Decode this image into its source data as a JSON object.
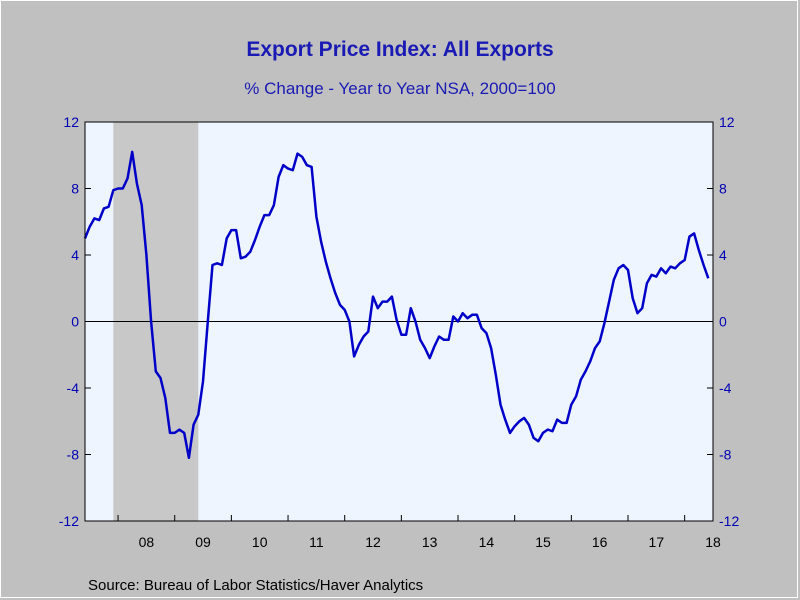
{
  "title": "Export Price Index: All Exports",
  "subtitle": "% Change - Year to Year     NSA, 2000=100",
  "source": "Source:  Bureau of Labor Statistics/Haver Analytics",
  "colors": {
    "line": "#0000c8",
    "plot_background": "#eef5ff",
    "recession_shade": "#c8c8c8",
    "outer_background": "#c0c0c0",
    "text_blue": "#1a1ab4"
  },
  "chart_data": {
    "type": "line",
    "title": "Export Price Index: All Exports",
    "subtitle": "% Change - Year to Year     NSA, 2000=100",
    "xlabel": "",
    "ylabel": "",
    "ylim": [
      -12,
      12
    ],
    "yticks": [
      -12,
      -8,
      -4,
      0,
      4,
      8,
      12
    ],
    "xlim": [
      "2007-06",
      "2018-07"
    ],
    "x_tick_labels": [
      "08",
      "09",
      "10",
      "11",
      "12",
      "13",
      "14",
      "15",
      "16",
      "17",
      "18"
    ],
    "recession_shading": [
      {
        "start": "2007-12",
        "end": "2009-06"
      }
    ],
    "zero_line": true,
    "grid": false,
    "series": [
      {
        "values": [
          {
            "x": "2007-06",
            "y": 5.0
          },
          {
            "x": "2007-07",
            "y": 5.7
          },
          {
            "x": "2007-08",
            "y": 6.2
          },
          {
            "x": "2007-09",
            "y": 6.1
          },
          {
            "x": "2007-10",
            "y": 6.8
          },
          {
            "x": "2007-11",
            "y": 6.9
          },
          {
            "x": "2007-12",
            "y": 7.9
          },
          {
            "x": "2008-01",
            "y": 8.0
          },
          {
            "x": "2008-02",
            "y": 8.0
          },
          {
            "x": "2008-03",
            "y": 8.6
          },
          {
            "x": "2008-04",
            "y": 10.2
          },
          {
            "x": "2008-05",
            "y": 8.3
          },
          {
            "x": "2008-06",
            "y": 7.0
          },
          {
            "x": "2008-07",
            "y": 4.0
          },
          {
            "x": "2008-08",
            "y": 0.0
          },
          {
            "x": "2008-09",
            "y": -3.0
          },
          {
            "x": "2008-10",
            "y": -3.4
          },
          {
            "x": "2008-11",
            "y": -4.6
          },
          {
            "x": "2008-12",
            "y": -6.7
          },
          {
            "x": "2009-01",
            "y": -6.7
          },
          {
            "x": "2009-02",
            "y": -6.5
          },
          {
            "x": "2009-03",
            "y": -6.7
          },
          {
            "x": "2009-04",
            "y": -8.2
          },
          {
            "x": "2009-05",
            "y": -6.2
          },
          {
            "x": "2009-06",
            "y": -5.6
          },
          {
            "x": "2009-07",
            "y": -3.6
          },
          {
            "x": "2009-08",
            "y": 0.0
          },
          {
            "x": "2009-09",
            "y": 3.4
          },
          {
            "x": "2009-10",
            "y": 3.5
          },
          {
            "x": "2009-11",
            "y": 3.4
          },
          {
            "x": "2009-12",
            "y": 5.0
          },
          {
            "x": "2010-01",
            "y": 5.5
          },
          {
            "x": "2010-02",
            "y": 5.5
          },
          {
            "x": "2010-03",
            "y": 3.8
          },
          {
            "x": "2010-04",
            "y": 3.9
          },
          {
            "x": "2010-05",
            "y": 4.2
          },
          {
            "x": "2010-06",
            "y": 4.9
          },
          {
            "x": "2010-07",
            "y": 5.7
          },
          {
            "x": "2010-08",
            "y": 6.4
          },
          {
            "x": "2010-09",
            "y": 6.4
          },
          {
            "x": "2010-10",
            "y": 7.0
          },
          {
            "x": "2010-11",
            "y": 8.7
          },
          {
            "x": "2010-12",
            "y": 9.4
          },
          {
            "x": "2011-01",
            "y": 9.2
          },
          {
            "x": "2011-02",
            "y": 9.1
          },
          {
            "x": "2011-03",
            "y": 10.1
          },
          {
            "x": "2011-04",
            "y": 9.9
          },
          {
            "x": "2011-05",
            "y": 9.4
          },
          {
            "x": "2011-06",
            "y": 9.3
          },
          {
            "x": "2011-07",
            "y": 6.3
          },
          {
            "x": "2011-08",
            "y": 4.8
          },
          {
            "x": "2011-09",
            "y": 3.6
          },
          {
            "x": "2011-10",
            "y": 2.6
          },
          {
            "x": "2011-11",
            "y": 1.7
          },
          {
            "x": "2011-12",
            "y": 1.0
          },
          {
            "x": "2012-01",
            "y": 0.7
          },
          {
            "x": "2012-02",
            "y": 0.0
          },
          {
            "x": "2012-03",
            "y": -2.1
          },
          {
            "x": "2012-04",
            "y": -1.4
          },
          {
            "x": "2012-05",
            "y": -0.9
          },
          {
            "x": "2012-06",
            "y": -0.6
          },
          {
            "x": "2012-07",
            "y": 1.5
          },
          {
            "x": "2012-08",
            "y": 0.8
          },
          {
            "x": "2012-09",
            "y": 1.2
          },
          {
            "x": "2012-10",
            "y": 1.2
          },
          {
            "x": "2012-11",
            "y": 1.5
          },
          {
            "x": "2012-12",
            "y": 0.1
          },
          {
            "x": "2013-01",
            "y": -0.8
          },
          {
            "x": "2013-02",
            "y": -0.8
          },
          {
            "x": "2013-03",
            "y": 0.8
          },
          {
            "x": "2013-04",
            "y": 0.0
          },
          {
            "x": "2013-05",
            "y": -1.1
          },
          {
            "x": "2013-06",
            "y": -1.6
          },
          {
            "x": "2013-07",
            "y": -2.2
          },
          {
            "x": "2013-08",
            "y": -1.5
          },
          {
            "x": "2013-09",
            "y": -0.9
          },
          {
            "x": "2013-10",
            "y": -1.1
          },
          {
            "x": "2013-11",
            "y": -1.1
          },
          {
            "x": "2013-12",
            "y": 0.3
          },
          {
            "x": "2014-01",
            "y": 0.0
          },
          {
            "x": "2014-02",
            "y": 0.5
          },
          {
            "x": "2014-03",
            "y": 0.2
          },
          {
            "x": "2014-04",
            "y": 0.4
          },
          {
            "x": "2014-05",
            "y": 0.4
          },
          {
            "x": "2014-06",
            "y": -0.4
          },
          {
            "x": "2014-07",
            "y": -0.7
          },
          {
            "x": "2014-08",
            "y": -1.6
          },
          {
            "x": "2014-09",
            "y": -3.2
          },
          {
            "x": "2014-10",
            "y": -5.0
          },
          {
            "x": "2014-11",
            "y": -5.9
          },
          {
            "x": "2014-12",
            "y": -6.7
          },
          {
            "x": "2015-01",
            "y": -6.3
          },
          {
            "x": "2015-02",
            "y": -6.0
          },
          {
            "x": "2015-03",
            "y": -5.8
          },
          {
            "x": "2015-04",
            "y": -6.2
          },
          {
            "x": "2015-05",
            "y": -7.0
          },
          {
            "x": "2015-06",
            "y": -7.2
          },
          {
            "x": "2015-07",
            "y": -6.7
          },
          {
            "x": "2015-08",
            "y": -6.5
          },
          {
            "x": "2015-09",
            "y": -6.6
          },
          {
            "x": "2015-10",
            "y": -5.9
          },
          {
            "x": "2015-11",
            "y": -6.1
          },
          {
            "x": "2015-12",
            "y": -6.1
          },
          {
            "x": "2016-01",
            "y": -5.0
          },
          {
            "x": "2016-02",
            "y": -4.5
          },
          {
            "x": "2016-03",
            "y": -3.5
          },
          {
            "x": "2016-04",
            "y": -3.0
          },
          {
            "x": "2016-05",
            "y": -2.4
          },
          {
            "x": "2016-06",
            "y": -1.6
          },
          {
            "x": "2016-07",
            "y": -1.2
          },
          {
            "x": "2016-08",
            "y": -0.1
          },
          {
            "x": "2016-09",
            "y": 1.2
          },
          {
            "x": "2016-10",
            "y": 2.5
          },
          {
            "x": "2016-11",
            "y": 3.2
          },
          {
            "x": "2016-12",
            "y": 3.4
          },
          {
            "x": "2017-01",
            "y": 3.1
          },
          {
            "x": "2017-02",
            "y": 1.4
          },
          {
            "x": "2017-03",
            "y": 0.5
          },
          {
            "x": "2017-04",
            "y": 0.8
          },
          {
            "x": "2017-05",
            "y": 2.3
          },
          {
            "x": "2017-06",
            "y": 2.8
          },
          {
            "x": "2017-07",
            "y": 2.7
          },
          {
            "x": "2017-08",
            "y": 3.2
          },
          {
            "x": "2017-09",
            "y": 2.9
          },
          {
            "x": "2017-10",
            "y": 3.3
          },
          {
            "x": "2017-11",
            "y": 3.2
          },
          {
            "x": "2017-12",
            "y": 3.5
          },
          {
            "x": "2018-01",
            "y": 3.7
          },
          {
            "x": "2018-02",
            "y": 5.1
          },
          {
            "x": "2018-03",
            "y": 5.3
          },
          {
            "x": "2018-04",
            "y": 4.3
          },
          {
            "x": "2018-05",
            "y": 3.4
          },
          {
            "x": "2018-06",
            "y": 2.6
          }
        ]
      }
    ]
  }
}
